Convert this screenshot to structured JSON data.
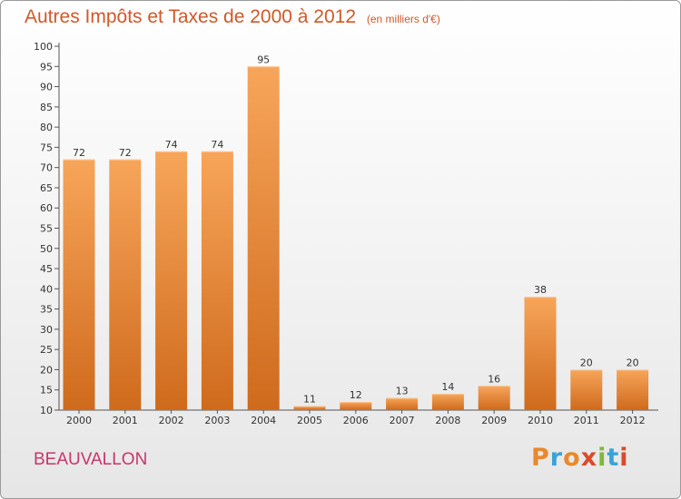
{
  "header": {
    "title": "Autres Impôts et Taxes de 2000 à 2012",
    "subtitle": "(en milliers d'€)"
  },
  "footer": {
    "place": "BEAUVALLON",
    "logo": "Proxiti",
    "logo_colors": [
      "#e8892c",
      "#3aa3d6",
      "#e8892c",
      "#d94b2b",
      "#7cb83c",
      "#3aa3d6",
      "#d94b2b"
    ]
  },
  "colors": {
    "title": "#d0582a",
    "place": "#c8356b",
    "bar_light": "#f7a55a",
    "bar_dark": "#cf6a1c",
    "axis": "#555555"
  },
  "chart_data": {
    "type": "bar",
    "categories": [
      "2000",
      "2001",
      "2002",
      "2003",
      "2004",
      "2005",
      "2006",
      "2007",
      "2008",
      "2009",
      "2010",
      "2011",
      "2012"
    ],
    "values": [
      72,
      72,
      74,
      74,
      95,
      11,
      12,
      13,
      14,
      16,
      38,
      20,
      20
    ],
    "ylim": [
      10,
      100
    ],
    "yticks": [
      10,
      15,
      20,
      25,
      30,
      35,
      40,
      45,
      50,
      55,
      60,
      65,
      70,
      75,
      80,
      85,
      90,
      95,
      100
    ],
    "grid": false,
    "legend": "none"
  }
}
